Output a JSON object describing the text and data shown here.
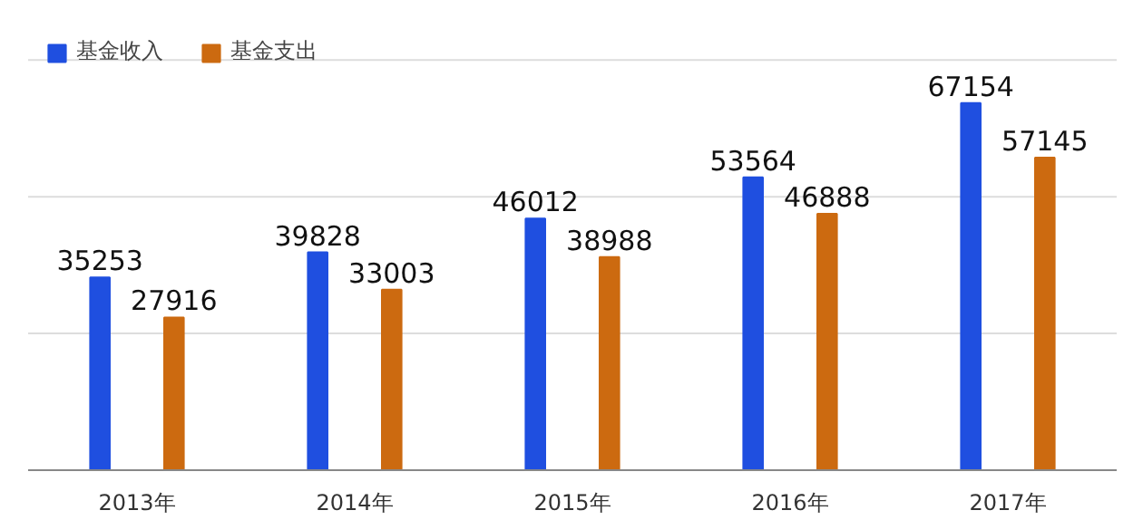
{
  "chart_data": {
    "type": "bar",
    "categories": [
      "2013年",
      "2014年",
      "2015年",
      "2016年",
      "2017年"
    ],
    "series": [
      {
        "name": "基金收入",
        "color": "#1f4fe0",
        "values": [
          35253,
          39828,
          46012,
          53564,
          67154
        ]
      },
      {
        "name": "基金支出",
        "color": "#cc6a10",
        "values": [
          27916,
          33003,
          38988,
          46888,
          57145
        ]
      }
    ],
    "ref_lines": [
      {
        "axis": "y",
        "value": 25000,
        "color": "#dddddd"
      },
      {
        "axis": "y",
        "value": 50000,
        "color": "#dddddd"
      },
      {
        "axis": "y",
        "value": 75000,
        "color": "#dddddd"
      }
    ],
    "legend": "top left",
    "data_labels": true,
    "tick_labels": "x"
  }
}
